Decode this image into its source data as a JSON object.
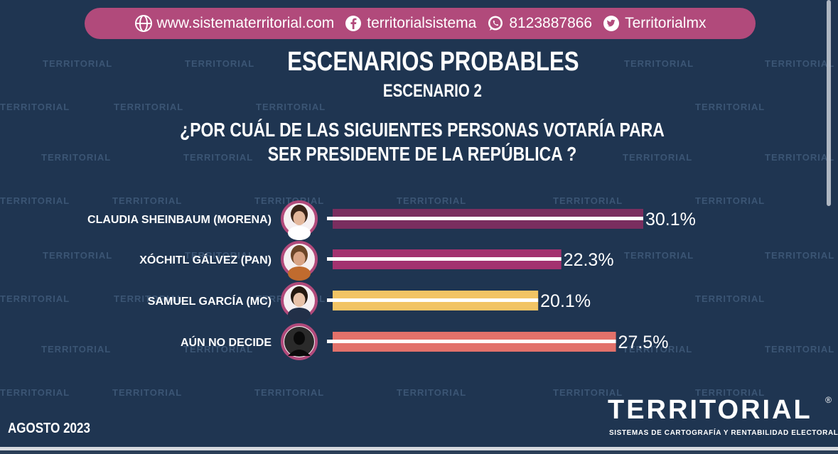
{
  "contact": {
    "website": "www.sistematerritorial.com",
    "facebook": "territorialsistema",
    "whatsapp": "8123887866",
    "twitter": "Territorialmx",
    "bar_color": "#b14a7b"
  },
  "header": {
    "title": "ESCENARIOS PROBABLES",
    "subtitle": "ESCENARIO 2",
    "question_line1": "¿POR CUÁL DE LAS SIGUIENTES PERSONAS VOTARÍA PARA",
    "question_line2": "SER PRESIDENTE DE LA REPÚBLICA ?"
  },
  "footer": {
    "date": "AGOSTO 2023",
    "brand": "TERRITORIAL",
    "brand_reg": "®",
    "brand_tagline": "SISTEMAS DE CARTOGRAFÍA Y RENTABILIDAD ELECTORAL"
  },
  "watermark": {
    "text": "TERRITORIAL"
  },
  "colors": {
    "background": "#1f3551",
    "morena": "#7a2e5f",
    "pan": "#a3326f",
    "mc": "#f2c464",
    "undecided": "#e2716a",
    "ring": "#b14a7b"
  },
  "chart_data": {
    "type": "bar",
    "orientation": "horizontal",
    "categories": [
      "CLAUDIA SHEINBAUM (MORENA)",
      "XÓCHITL GÁLVEZ (PAN)",
      "SAMUEL GARCÍA (MC)",
      "AÚN NO DECIDE"
    ],
    "values": [
      30.1,
      22.3,
      20.1,
      27.5
    ],
    "value_labels": [
      "30.1%",
      "22.3%",
      "20.1%",
      "27.5%"
    ],
    "bar_colors": [
      "#7a2e5f",
      "#a3326f",
      "#f2c464",
      "#e2716a"
    ],
    "xlim": [
      0,
      30.1
    ],
    "grid": false,
    "legend": "none",
    "icons": [
      "avatar-sheinbaum-icon",
      "avatar-galvez-icon",
      "avatar-garcia-icon",
      "avatar-silhouette-icon"
    ]
  }
}
